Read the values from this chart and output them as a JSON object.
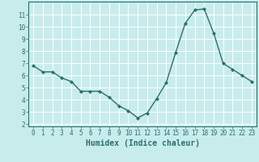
{
  "x": [
    0,
    1,
    2,
    3,
    4,
    5,
    6,
    7,
    8,
    9,
    10,
    11,
    12,
    13,
    14,
    15,
    16,
    17,
    18,
    19,
    20,
    21,
    22,
    23
  ],
  "y": [
    6.8,
    6.3,
    6.3,
    5.8,
    5.5,
    4.7,
    4.7,
    4.7,
    4.2,
    3.5,
    3.1,
    2.5,
    2.9,
    4.1,
    5.4,
    7.9,
    10.3,
    11.4,
    11.5,
    9.5,
    7.0,
    6.5,
    6.0,
    5.5
  ],
  "line_color": "#2d6e6e",
  "marker": "D",
  "marker_size": 2.0,
  "bg_color": "#c8ecec",
  "grid_color": "#ffffff",
  "xlabel": "Humidex (Indice chaleur)",
  "xlabel_fontsize": 7,
  "yticks": [
    2,
    3,
    4,
    5,
    6,
    7,
    8,
    9,
    10,
    11
  ],
  "xticks": [
    0,
    1,
    2,
    3,
    4,
    5,
    6,
    7,
    8,
    9,
    10,
    11,
    12,
    13,
    14,
    15,
    16,
    17,
    18,
    19,
    20,
    21,
    22,
    23
  ],
  "ylim": [
    1.8,
    12.1
  ],
  "xlim": [
    -0.5,
    23.5
  ],
  "tick_fontsize": 5.5,
  "tick_color": "#2d6e6e",
  "label_color": "#2d6e6e",
  "spine_color": "#2d6e6e",
  "linewidth": 1.0
}
